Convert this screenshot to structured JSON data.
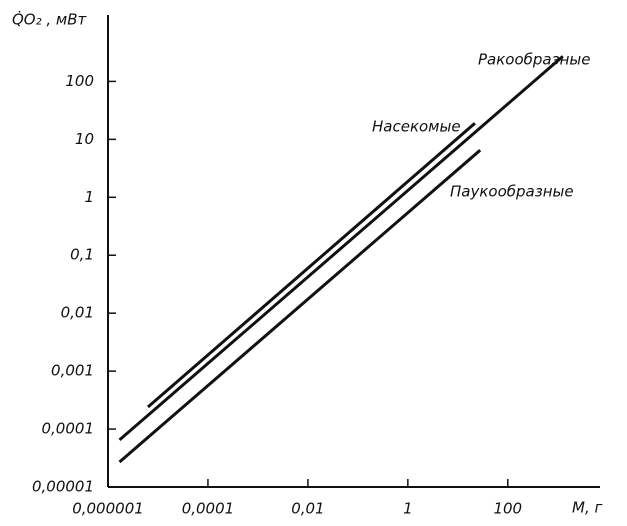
{
  "chart_data": {
    "type": "line",
    "ylabel": "Q̇O₂ , мВт",
    "xlabel": "М, г",
    "xscale": "log",
    "yscale": "log",
    "xlim": [
      1e-06,
      7000
    ],
    "ylim": [
      1e-05,
      1400
    ],
    "xticks": [
      {
        "value": 1e-06,
        "label": "0,000001"
      },
      {
        "value": 0.0001,
        "label": "0,0001"
      },
      {
        "value": 0.01,
        "label": "0,01"
      },
      1,
      100
    ],
    "yticks": [
      {
        "value": 1e-05,
        "label": "0,00001"
      },
      {
        "value": 0.0001,
        "label": "0,0001"
      },
      {
        "value": 0.001,
        "label": "0,001"
      },
      {
        "value": 0.01,
        "label": "0,01"
      },
      {
        "value": 0.1,
        "label": "0,1"
      },
      1,
      10,
      100
    ],
    "series": [
      {
        "name": "Ракообразные",
        "color": "#111111",
        "x": [
          1.7e-06,
          1260
        ],
        "values": [
          6.5e-05,
          270
        ]
      },
      {
        "name": "Насекомые",
        "color": "#111111",
        "x": [
          6.3e-06,
          22
        ],
        "values": [
          0.00024,
          19
        ]
      },
      {
        "name": "Паукообразные",
        "color": "#111111",
        "x": [
          1.7e-06,
          28
        ],
        "values": [
          2.7e-05,
          6.5
        ]
      }
    ]
  }
}
